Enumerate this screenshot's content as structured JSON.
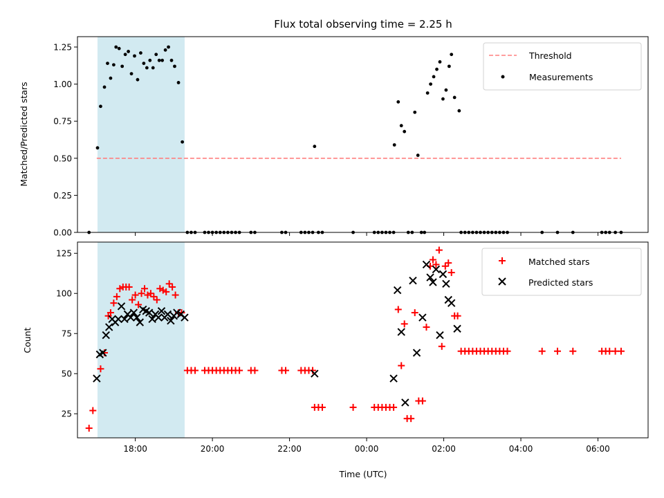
{
  "chart_data": [
    {
      "type": "scatter",
      "title": "Flux total observing time = 2.25 h",
      "xlabel": "",
      "ylabel": "Matched/Predicted stars",
      "ylim": [
        0,
        1.32
      ],
      "yticks": [
        0.0,
        0.25,
        0.5,
        0.75,
        1.0,
        1.25
      ],
      "ytick_labels": [
        "0.00",
        "0.25",
        "0.50",
        "0.75",
        "1.00",
        "1.25"
      ],
      "xlim": [
        16.5,
        31.3
      ],
      "xticks": [
        18,
        20,
        22,
        24,
        26,
        28,
        30
      ],
      "xtick_labels": [
        "",
        "",
        "",
        "",
        "",
        "",
        ""
      ],
      "legend_position": "top-right",
      "shaded_interval": {
        "x": [
          17.02,
          19.28
        ],
        "color": "#add8e6"
      },
      "threshold": {
        "name": "Threshold",
        "value": 0.5,
        "x": [
          17.0,
          30.6
        ],
        "color": "#ff7f7f"
      },
      "series": [
        {
          "name": "Measurements",
          "color": "#000000",
          "marker": "dot",
          "points": [
            [
              16.8,
              0
            ],
            [
              17.02,
              0.57
            ],
            [
              17.1,
              0.85
            ],
            [
              17.2,
              0.98
            ],
            [
              17.28,
              1.14
            ],
            [
              17.36,
              1.04
            ],
            [
              17.44,
              1.13
            ],
            [
              17.5,
              1.25
            ],
            [
              17.58,
              1.24
            ],
            [
              17.66,
              1.12
            ],
            [
              17.74,
              1.2
            ],
            [
              17.82,
              1.22
            ],
            [
              17.9,
              1.07
            ],
            [
              17.98,
              1.19
            ],
            [
              18.06,
              1.03
            ],
            [
              18.14,
              1.21
            ],
            [
              18.22,
              1.14
            ],
            [
              18.3,
              1.11
            ],
            [
              18.38,
              1.16
            ],
            [
              18.46,
              1.11
            ],
            [
              18.54,
              1.2
            ],
            [
              18.62,
              1.16
            ],
            [
              18.7,
              1.16
            ],
            [
              18.78,
              1.23
            ],
            [
              18.86,
              1.25
            ],
            [
              18.94,
              1.16
            ],
            [
              19.02,
              1.12
            ],
            [
              19.12,
              1.01
            ],
            [
              19.22,
              0.61
            ],
            [
              19.35,
              0
            ],
            [
              19.45,
              0
            ],
            [
              19.55,
              0
            ],
            [
              19.8,
              0
            ],
            [
              19.9,
              0
            ],
            [
              20.0,
              0
            ],
            [
              20.1,
              0
            ],
            [
              20.2,
              0
            ],
            [
              20.3,
              0
            ],
            [
              20.4,
              0
            ],
            [
              20.5,
              0
            ],
            [
              20.6,
              0
            ],
            [
              20.7,
              0
            ],
            [
              21.0,
              0
            ],
            [
              21.1,
              0
            ],
            [
              21.8,
              0
            ],
            [
              21.9,
              0
            ],
            [
              22.3,
              0
            ],
            [
              22.4,
              0
            ],
            [
              22.5,
              0
            ],
            [
              22.6,
              0
            ],
            [
              22.65,
              0.58
            ],
            [
              22.75,
              0
            ],
            [
              22.85,
              0
            ],
            [
              23.65,
              0
            ],
            [
              24.2,
              0
            ],
            [
              24.3,
              0
            ],
            [
              24.4,
              0
            ],
            [
              24.5,
              0
            ],
            [
              24.6,
              0
            ],
            [
              24.7,
              0
            ],
            [
              24.72,
              0.59
            ],
            [
              24.82,
              0.88
            ],
            [
              24.9,
              0.72
            ],
            [
              24.98,
              0.68
            ],
            [
              25.08,
              0
            ],
            [
              25.18,
              0
            ],
            [
              25.25,
              0.81
            ],
            [
              25.33,
              0.52
            ],
            [
              25.42,
              0
            ],
            [
              25.5,
              0
            ],
            [
              25.58,
              0.94
            ],
            [
              25.66,
              1.0
            ],
            [
              25.74,
              1.05
            ],
            [
              25.82,
              1.1
            ],
            [
              25.9,
              1.15
            ],
            [
              25.98,
              0.9
            ],
            [
              26.06,
              0.96
            ],
            [
              26.14,
              1.12
            ],
            [
              26.2,
              1.2
            ],
            [
              26.28,
              0.91
            ],
            [
              26.4,
              0.82
            ],
            [
              26.45,
              0
            ],
            [
              26.55,
              0
            ],
            [
              26.65,
              0
            ],
            [
              26.75,
              0
            ],
            [
              26.85,
              0
            ],
            [
              26.95,
              0
            ],
            [
              27.05,
              0
            ],
            [
              27.15,
              0
            ],
            [
              27.25,
              0
            ],
            [
              27.35,
              0
            ],
            [
              27.45,
              0
            ],
            [
              27.55,
              0
            ],
            [
              27.65,
              0
            ],
            [
              28.55,
              0
            ],
            [
              28.95,
              0
            ],
            [
              29.35,
              0
            ],
            [
              30.1,
              0
            ],
            [
              30.2,
              0
            ],
            [
              30.3,
              0
            ],
            [
              30.45,
              0
            ],
            [
              30.6,
              0
            ]
          ]
        }
      ]
    },
    {
      "type": "scatter",
      "title": "",
      "xlabel": "Time (UTC)",
      "ylabel": "Count",
      "ylim": [
        10,
        132
      ],
      "yticks": [
        25,
        50,
        75,
        100,
        125
      ],
      "ytick_labels": [
        "25",
        "50",
        "75",
        "100",
        "125"
      ],
      "xlim": [
        16.5,
        31.3
      ],
      "xticks": [
        18,
        20,
        22,
        24,
        26,
        28,
        30
      ],
      "xtick_labels": [
        "18:00",
        "20:00",
        "22:00",
        "00:00",
        "02:00",
        "04:00",
        "06:00"
      ],
      "legend_position": "top-right",
      "shaded_interval": {
        "x": [
          17.02,
          19.28
        ],
        "color": "#add8e6"
      },
      "series": [
        {
          "name": "Matched stars",
          "color": "#ff0000",
          "marker": "plus",
          "points": [
            [
              16.8,
              16
            ],
            [
              16.9,
              27
            ],
            [
              17.1,
              53
            ],
            [
              17.2,
              63
            ],
            [
              17.3,
              86
            ],
            [
              17.36,
              88
            ],
            [
              17.44,
              94
            ],
            [
              17.52,
              98
            ],
            [
              17.6,
              103
            ],
            [
              17.68,
              104
            ],
            [
              17.76,
              104
            ],
            [
              17.84,
              104
            ],
            [
              17.92,
              96
            ],
            [
              18.0,
              99
            ],
            [
              18.08,
              93
            ],
            [
              18.16,
              100
            ],
            [
              18.24,
              103
            ],
            [
              18.32,
              99
            ],
            [
              18.4,
              100
            ],
            [
              18.48,
              98
            ],
            [
              18.56,
              96
            ],
            [
              18.64,
              103
            ],
            [
              18.72,
              102
            ],
            [
              18.8,
              101
            ],
            [
              18.88,
              106
            ],
            [
              18.96,
              104
            ],
            [
              19.04,
              99
            ],
            [
              19.12,
              88
            ],
            [
              19.2,
              88
            ],
            [
              19.35,
              52
            ],
            [
              19.45,
              52
            ],
            [
              19.55,
              52
            ],
            [
              19.8,
              52
            ],
            [
              19.9,
              52
            ],
            [
              20.0,
              52
            ],
            [
              20.1,
              52
            ],
            [
              20.2,
              52
            ],
            [
              20.3,
              52
            ],
            [
              20.4,
              52
            ],
            [
              20.5,
              52
            ],
            [
              20.6,
              52
            ],
            [
              20.7,
              52
            ],
            [
              21.0,
              52
            ],
            [
              21.1,
              52
            ],
            [
              21.8,
              52
            ],
            [
              21.9,
              52
            ],
            [
              22.3,
              52
            ],
            [
              22.4,
              52
            ],
            [
              22.5,
              52
            ],
            [
              22.6,
              52
            ],
            [
              22.65,
              29
            ],
            [
              22.75,
              29
            ],
            [
              22.85,
              29
            ],
            [
              23.65,
              29
            ],
            [
              24.2,
              29
            ],
            [
              24.3,
              29
            ],
            [
              24.4,
              29
            ],
            [
              24.5,
              29
            ],
            [
              24.6,
              29
            ],
            [
              24.7,
              29
            ],
            [
              24.82,
              90
            ],
            [
              24.9,
              55
            ],
            [
              24.98,
              81
            ],
            [
              25.05,
              22
            ],
            [
              25.15,
              22
            ],
            [
              25.25,
              88
            ],
            [
              25.35,
              33
            ],
            [
              25.45,
              33
            ],
            [
              25.55,
              79
            ],
            [
              25.65,
              117
            ],
            [
              25.72,
              121
            ],
            [
              25.8,
              118
            ],
            [
              25.88,
              127
            ],
            [
              25.95,
              67
            ],
            [
              26.04,
              117
            ],
            [
              26.12,
              119
            ],
            [
              26.2,
              113
            ],
            [
              26.28,
              86
            ],
            [
              26.36,
              86
            ],
            [
              26.45,
              64
            ],
            [
              26.55,
              64
            ],
            [
              26.65,
              64
            ],
            [
              26.75,
              64
            ],
            [
              26.85,
              64
            ],
            [
              26.95,
              64
            ],
            [
              27.05,
              64
            ],
            [
              27.15,
              64
            ],
            [
              27.25,
              64
            ],
            [
              27.35,
              64
            ],
            [
              27.45,
              64
            ],
            [
              27.55,
              64
            ],
            [
              27.65,
              64
            ],
            [
              28.55,
              64
            ],
            [
              28.95,
              64
            ],
            [
              29.35,
              64
            ],
            [
              30.1,
              64
            ],
            [
              30.2,
              64
            ],
            [
              30.3,
              64
            ],
            [
              30.45,
              64
            ],
            [
              30.6,
              64
            ]
          ]
        },
        {
          "name": "Predicted stars",
          "color": "#000000",
          "marker": "x",
          "points": [
            [
              17.0,
              47
            ],
            [
              17.08,
              62
            ],
            [
              17.16,
              63
            ],
            [
              17.24,
              74
            ],
            [
              17.32,
              79
            ],
            [
              17.4,
              84
            ],
            [
              17.48,
              82
            ],
            [
              17.56,
              84
            ],
            [
              17.64,
              92
            ],
            [
              17.72,
              84
            ],
            [
              17.8,
              87
            ],
            [
              17.88,
              85
            ],
            [
              17.96,
              88
            ],
            [
              18.04,
              85
            ],
            [
              18.12,
              82
            ],
            [
              18.2,
              90
            ],
            [
              18.28,
              89
            ],
            [
              18.36,
              88
            ],
            [
              18.44,
              84
            ],
            [
              18.52,
              87
            ],
            [
              18.6,
              85
            ],
            [
              18.68,
              89
            ],
            [
              18.76,
              85
            ],
            [
              18.84,
              87
            ],
            [
              18.92,
              83
            ],
            [
              19.0,
              86
            ],
            [
              19.08,
              88
            ],
            [
              19.18,
              87
            ],
            [
              19.28,
              85
            ],
            [
              22.65,
              50
            ],
            [
              24.7,
              47
            ],
            [
              24.8,
              102
            ],
            [
              24.9,
              76
            ],
            [
              25.0,
              32
            ],
            [
              25.2,
              108
            ],
            [
              25.3,
              63
            ],
            [
              25.45,
              85
            ],
            [
              25.55,
              118
            ],
            [
              25.65,
              110
            ],
            [
              25.72,
              107
            ],
            [
              25.8,
              115
            ],
            [
              25.9,
              74
            ],
            [
              25.98,
              112
            ],
            [
              26.06,
              106
            ],
            [
              26.12,
              96
            ],
            [
              26.2,
              94
            ],
            [
              26.35,
              78
            ]
          ]
        }
      ]
    }
  ]
}
